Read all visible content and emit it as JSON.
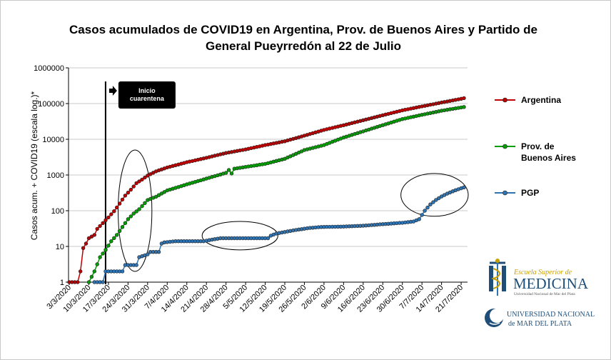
{
  "chart_data": {
    "type": "line",
    "title_line1": "Casos acumulados  de COVID19 en Argentina, Prov. de Buenos Aires y Partido de",
    "title_line2": "General Pueyrredón al  22 de Julio",
    "ylabel": "Casos  acum.  + COVID19 (escala log.)*",
    "yscale": "log",
    "ylim": [
      1,
      1000000
    ],
    "y_ticks": [
      "1",
      "10",
      "100",
      "1000",
      "10000",
      "100000",
      "1000000"
    ],
    "x_start": "3/3/2020",
    "x_end": "22/7/2020",
    "x_ticks": [
      "3/3/2020",
      "10/3/2020",
      "17/3/2020",
      "24/3/2020",
      "31/3/2020",
      "7/4/2020",
      "14/4/2020",
      "21/4/2020",
      "28/4/2020",
      "5/5/2020",
      "12/5/2020",
      "19/5/2020",
      "26/5/2020",
      "2/6/2020",
      "9/6/2020",
      "16/6/2020",
      "23/6/2020",
      "30/6/2020",
      "7/7/2020",
      "14/7/2020",
      "21/7/2020"
    ],
    "grid": true,
    "legend_position": "right",
    "series": [
      {
        "name": "Argentina",
        "color": "#c00000",
        "points": [
          [
            "3/3/2020",
            1
          ],
          [
            "6/3/2020",
            1
          ],
          [
            "7/3/2020",
            2
          ],
          [
            "8/3/2020",
            9
          ],
          [
            "9/3/2020",
            12
          ],
          [
            "10/3/2020",
            17
          ],
          [
            "12/3/2020",
            21
          ],
          [
            "13/3/2020",
            31
          ],
          [
            "15/3/2020",
            45
          ],
          [
            "17/3/2020",
            65
          ],
          [
            "19/3/2020",
            97
          ],
          [
            "21/3/2020",
            158
          ],
          [
            "23/3/2020",
            266
          ],
          [
            "25/3/2020",
            387
          ],
          [
            "27/3/2020",
            589
          ],
          [
            "29/3/2020",
            745
          ],
          [
            "31/3/2020",
            966
          ],
          [
            "3/4/2020",
            1265
          ],
          [
            "7/4/2020",
            1628
          ],
          [
            "14/4/2020",
            2277
          ],
          [
            "21/4/2020",
            3031
          ],
          [
            "28/4/2020",
            4127
          ],
          [
            "5/5/2020",
            5208
          ],
          [
            "12/5/2020",
            6879
          ],
          [
            "19/5/2020",
            8809
          ],
          [
            "26/5/2020",
            12628
          ],
          [
            "2/6/2020",
            18319
          ],
          [
            "9/6/2020",
            24761
          ],
          [
            "16/6/2020",
            34159
          ],
          [
            "23/6/2020",
            47203
          ],
          [
            "30/6/2020",
            64530
          ],
          [
            "7/7/2020",
            83426
          ],
          [
            "14/7/2020",
            106910
          ],
          [
            "21/7/2020",
            136118
          ],
          [
            "22/7/2020",
            141900
          ]
        ]
      },
      {
        "name": "Prov. de Buenos Aires",
        "color": "#00a000",
        "points": [
          [
            "10/3/2020",
            1
          ],
          [
            "12/3/2020",
            2
          ],
          [
            "14/3/2020",
            5
          ],
          [
            "16/3/2020",
            8
          ],
          [
            "18/3/2020",
            14
          ],
          [
            "20/3/2020",
            21
          ],
          [
            "22/3/2020",
            35
          ],
          [
            "24/3/2020",
            58
          ],
          [
            "26/3/2020",
            83
          ],
          [
            "28/3/2020",
            110
          ],
          [
            "31/3/2020",
            199
          ],
          [
            "3/4/2020",
            247
          ],
          [
            "7/4/2020",
            370
          ],
          [
            "14/4/2020",
            546
          ],
          [
            "21/4/2020",
            793
          ],
          [
            "28/4/2020",
            1150
          ],
          [
            "29/4/2020",
            1380
          ],
          [
            "30/4/2020",
            1100
          ],
          [
            "1/5/2020",
            1500
          ],
          [
            "5/5/2020",
            1680
          ],
          [
            "12/5/2020",
            2050
          ],
          [
            "19/5/2020",
            2850
          ],
          [
            "26/5/2020",
            4980
          ],
          [
            "2/6/2020",
            6900
          ],
          [
            "9/6/2020",
            11200
          ],
          [
            "16/6/2020",
            16700
          ],
          [
            "23/6/2020",
            24900
          ],
          [
            "30/6/2020",
            36800
          ],
          [
            "7/7/2020",
            48500
          ],
          [
            "14/7/2020",
            63000
          ],
          [
            "21/7/2020",
            78000
          ],
          [
            "22/7/2020",
            80000
          ]
        ]
      },
      {
        "name": "PGP",
        "color": "#2e75b6",
        "points": [
          [
            "12/3/2020",
            1
          ],
          [
            "15/3/2020",
            1
          ],
          [
            "16/3/2020",
            2
          ],
          [
            "22/3/2020",
            2
          ],
          [
            "23/3/2020",
            3
          ],
          [
            "27/3/2020",
            3
          ],
          [
            "28/3/2020",
            5
          ],
          [
            "31/3/2020",
            6
          ],
          [
            "1/4/2020",
            7
          ],
          [
            "4/4/2020",
            7
          ],
          [
            "5/4/2020",
            12
          ],
          [
            "6/4/2020",
            13
          ],
          [
            "10/4/2020",
            14
          ],
          [
            "20/4/2020",
            14
          ],
          [
            "22/4/2020",
            15
          ],
          [
            "26/4/2020",
            17
          ],
          [
            "13/5/2020",
            17
          ],
          [
            "14/5/2020",
            20
          ],
          [
            "16/5/2020",
            23
          ],
          [
            "23/5/2020",
            29
          ],
          [
            "28/5/2020",
            33
          ],
          [
            "1/6/2020",
            35
          ],
          [
            "9/6/2020",
            36
          ],
          [
            "16/6/2020",
            38
          ],
          [
            "23/6/2020",
            42
          ],
          [
            "30/6/2020",
            46
          ],
          [
            "4/7/2020",
            50
          ],
          [
            "6/7/2020",
            58
          ],
          [
            "8/7/2020",
            100
          ],
          [
            "10/7/2020",
            150
          ],
          [
            "12/7/2020",
            200
          ],
          [
            "14/7/2020",
            250
          ],
          [
            "16/7/2020",
            300
          ],
          [
            "18/7/2020",
            350
          ],
          [
            "20/7/2020",
            400
          ],
          [
            "22/7/2020",
            450
          ]
        ]
      }
    ],
    "annotation": {
      "date": "17/3/2020",
      "text_line1": "Inicio",
      "text_line2": "cuarentena"
    },
    "highlight_ellipses": [
      {
        "from": "22/3/2020",
        "to": "31/3/2020",
        "ymin": 2,
        "ymax": 5000
      },
      {
        "from": "21/4/2020",
        "to": "15/5/2020",
        "ymin": 8,
        "ymax": 50
      },
      {
        "from": "1/7/2020",
        "to": "22/7/2020",
        "ymin": 70,
        "ymax": 1100
      }
    ]
  },
  "logos": {
    "esm_line1": "Escuela Superior de",
    "esm_line2": "MEDICINA",
    "esm_line3": "Universidad Nacional de Mar del Plata",
    "unmdp_line1": "UNIVERSIDAD NACIONAL",
    "unmdp_line2": "de MAR DEL PLATA"
  }
}
